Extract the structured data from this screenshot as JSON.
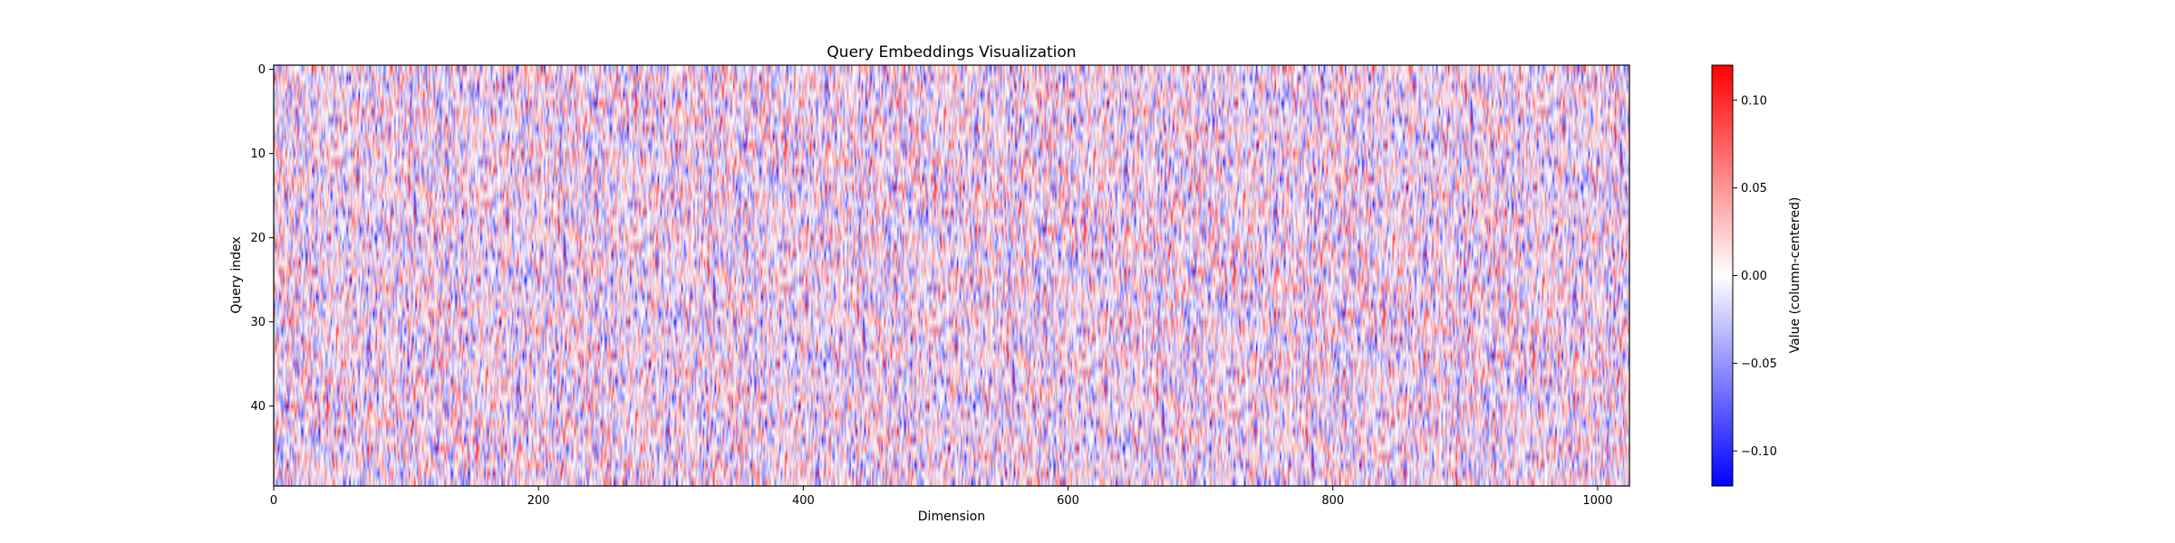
{
  "chart_data": {
    "type": "heatmap",
    "title": "Query Embeddings Visualization",
    "xlabel": "Dimension",
    "ylabel": "Query index",
    "n_rows": 50,
    "n_cols": 1024,
    "xlim": [
      0,
      1024
    ],
    "ylim": [
      0,
      50
    ],
    "x_ticks": [
      "0",
      "200",
      "400",
      "600",
      "800",
      "1000"
    ],
    "y_ticks": [
      "0",
      "10",
      "20",
      "30",
      "40"
    ],
    "colormap": "bwr",
    "colormap_colors": [
      "#0000ff",
      "#ffffff",
      "#ff0000"
    ],
    "value_range": [
      -0.12,
      0.12
    ],
    "values_description_note": null,
    "colorbar": {
      "label": "Value (column-centered)",
      "ticks": [
        "−0.10",
        "−0.05",
        "0.00",
        "0.05",
        "0.10"
      ],
      "tick_values": [
        -0.1,
        -0.05,
        0.0,
        0.05,
        0.1
      ]
    },
    "grid": false,
    "legend": "none"
  }
}
